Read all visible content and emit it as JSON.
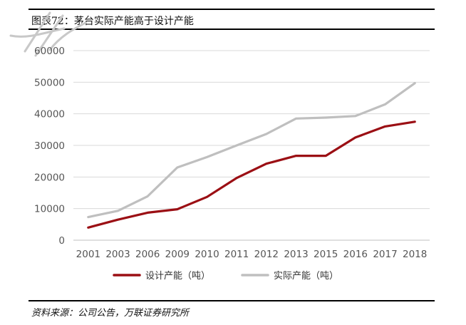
{
  "header": {
    "title": "图表72：茅台实际产能高于设计产能"
  },
  "footer": {
    "source": "资料来源：公司公告，万联证券研究所"
  },
  "chart_data": {
    "type": "line",
    "title": "图表72：茅台实际产能高于设计产能",
    "xlabel": "",
    "ylabel": "",
    "categories": [
      "2001",
      "2003",
      "2006",
      "2009",
      "2010",
      "2011",
      "2012",
      "2013",
      "2015",
      "2016",
      "2017",
      "2018"
    ],
    "series": [
      {
        "name": "设计产能（吨）",
        "color": "#9b0f14",
        "values": [
          4000,
          6500,
          8700,
          9800,
          13700,
          19700,
          24200,
          26700,
          26700,
          32500,
          36000,
          37500
        ]
      },
      {
        "name": "实际产能（吨）",
        "color": "#bfbfbf",
        "values": [
          7300,
          9300,
          13900,
          23000,
          26300,
          30000,
          33600,
          38500,
          38800,
          39300,
          43000,
          49700
        ]
      }
    ],
    "ylim": [
      0,
      60000
    ],
    "yticks": [
      0,
      10000,
      20000,
      30000,
      40000,
      50000,
      60000
    ],
    "grid": true,
    "legend_position": "bottom"
  }
}
